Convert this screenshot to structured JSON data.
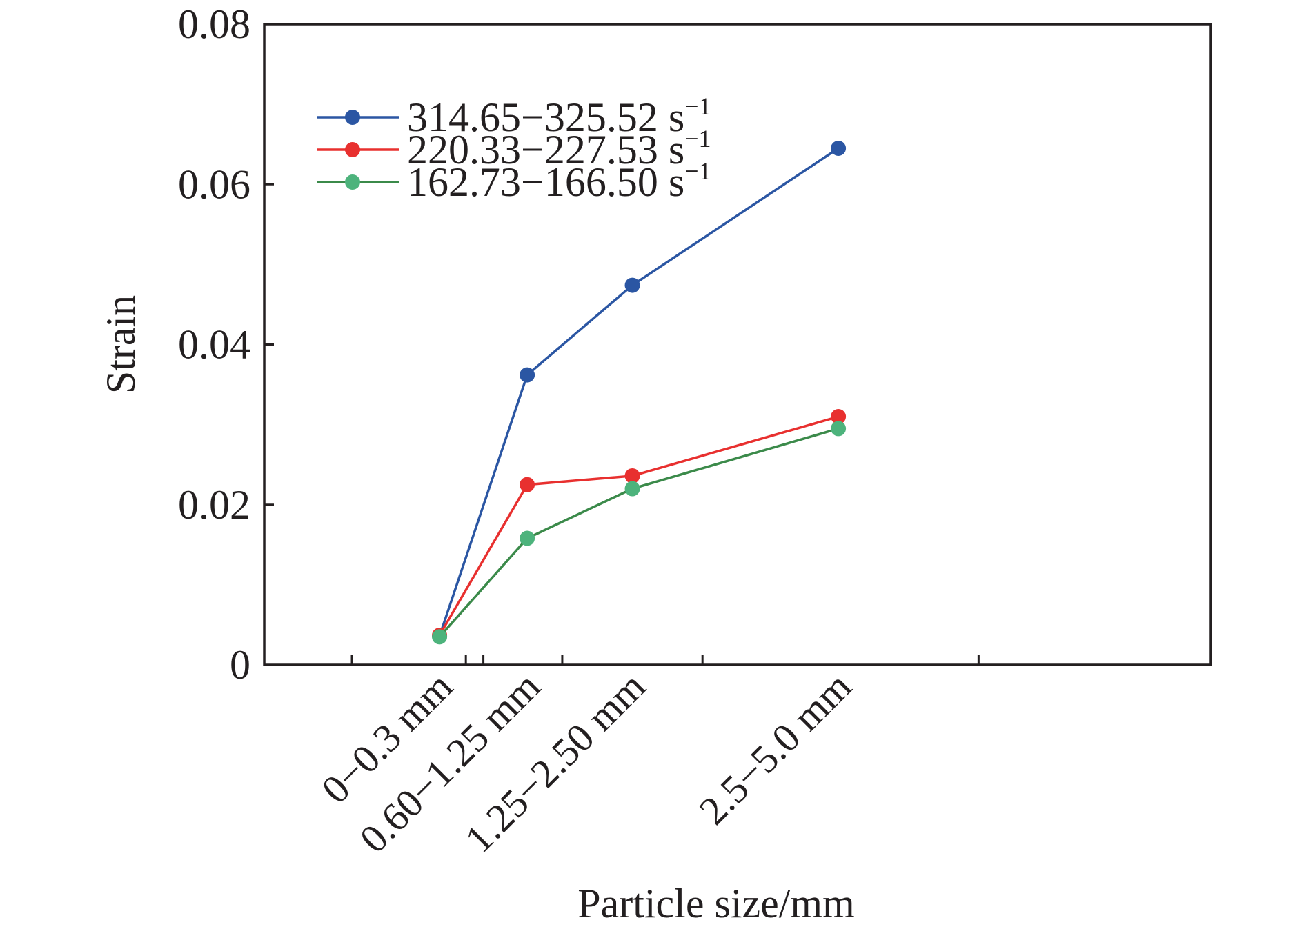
{
  "chart_data": {
    "type": "line",
    "xlabel": "Particle size/mm",
    "ylabel": "Strain",
    "ylim": [
      0,
      0.08
    ],
    "yticks": [
      "0",
      "0.02",
      "0.04",
      "0.06",
      "0.08"
    ],
    "categories": [
      "0−0.3 mm",
      "0.60−1.25 mm",
      "1.25−2.50 mm",
      "2.5−5.0 mm"
    ],
    "x_positions": [
      2.0,
      3.0,
      4.2,
      6.55
    ],
    "xlim": [
      0,
      10.8
    ],
    "minor_ticks_x": [
      1.0,
      2.3,
      2.5,
      3.4,
      5.0,
      8.15
    ],
    "grid": false,
    "legend_position": "top-left",
    "series": [
      {
        "name": "314.65−325.52 s",
        "superscript": "−1",
        "color": "#2b56a3",
        "values": [
          0.0036,
          0.0362,
          0.0474,
          0.0645
        ]
      },
      {
        "name": "220.33−227.53 s",
        "superscript": "−1",
        "color": "#e8302f",
        "values": [
          0.0037,
          0.0225,
          0.0236,
          0.031
        ]
      },
      {
        "name": "162.73−166.50 s",
        "superscript": "−1",
        "color": "#3b8a4a",
        "marker_color": "#4db37c",
        "values": [
          0.0035,
          0.0158,
          0.022,
          0.0295
        ]
      }
    ]
  }
}
